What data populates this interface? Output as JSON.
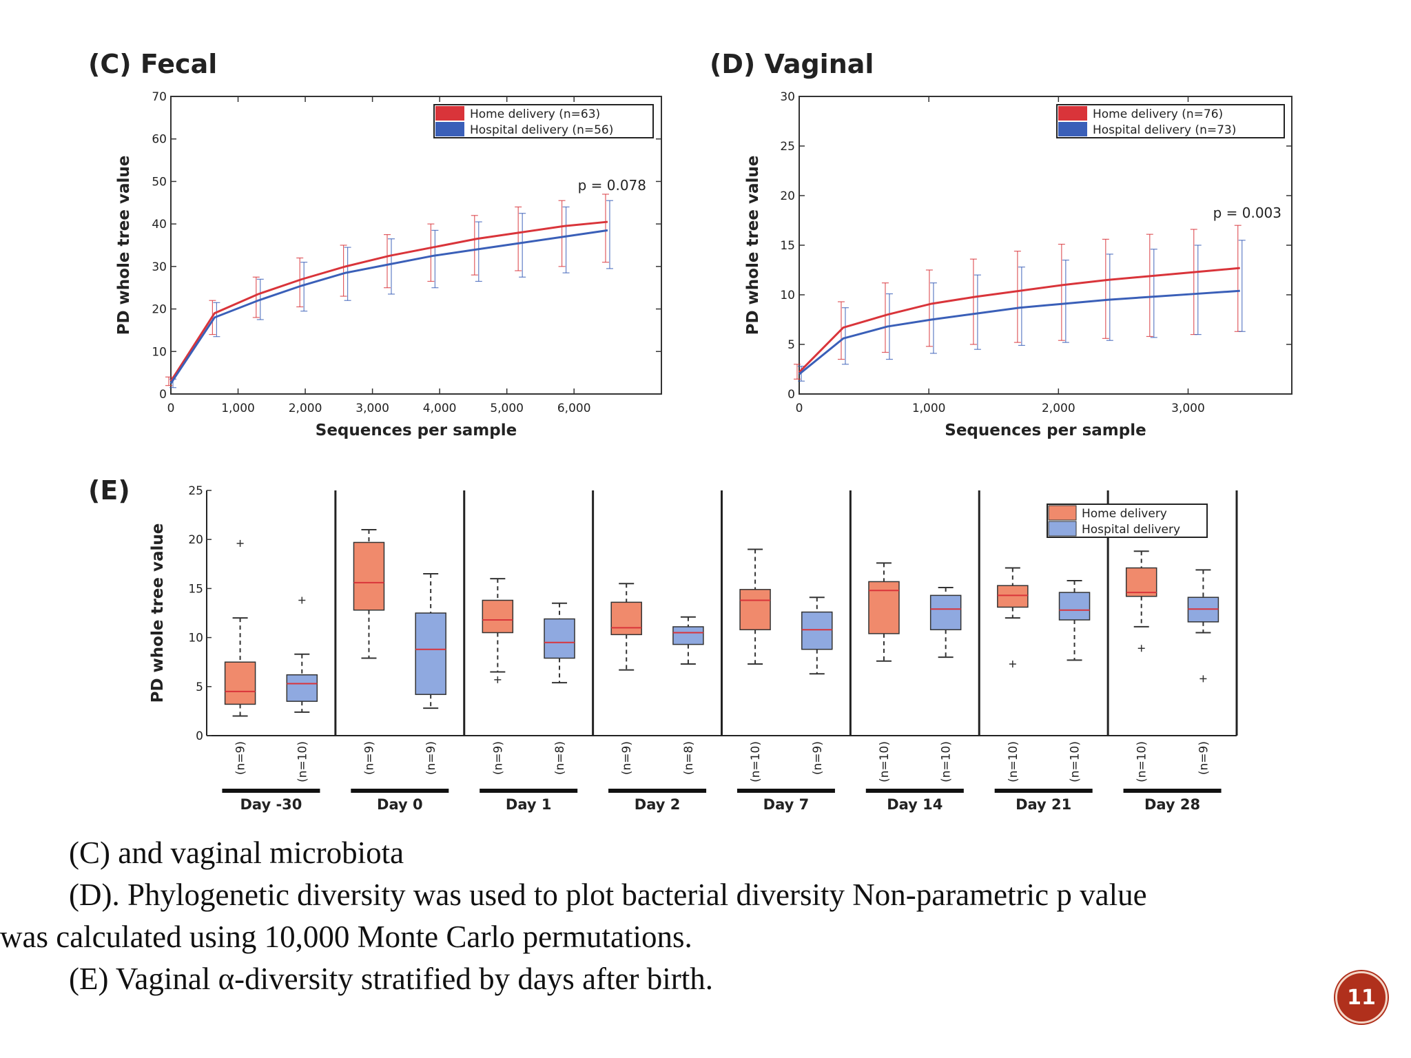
{
  "colors": {
    "home_line": "#d9343a",
    "hospital_line": "#3a5fb8",
    "home_box": "#f08a6c",
    "hospital_box": "#8fa9e0",
    "median": "#d9343a",
    "slide_badge": "#b0301c"
  },
  "chart_data": [
    {
      "type": "line",
      "panel_label": "(C) Fecal",
      "xlabel": "Sequences per sample",
      "ylabel": "PD whole tree value",
      "xlim": [
        0,
        7300
      ],
      "ylim": [
        0,
        70
      ],
      "xticks": [
        0,
        1000,
        2000,
        3000,
        4000,
        5000,
        6000
      ],
      "xtick_labels": [
        "0",
        "1,000",
        "2,000",
        "3,000",
        "4,000",
        "5,000",
        "6,000"
      ],
      "yticks": [
        0,
        10,
        20,
        30,
        40,
        50,
        60,
        70
      ],
      "ytick_labels": [
        "0",
        "10",
        "20",
        "30",
        "40",
        "50",
        "60",
        "70"
      ],
      "annotation": "p = 0.078",
      "x": [
        0,
        650,
        1300,
        1950,
        2600,
        3250,
        3900,
        4550,
        5200,
        5850,
        6500
      ],
      "series": [
        {
          "name": "Home delivery (n=63)",
          "values": [
            3,
            19,
            23.5,
            27,
            30,
            32.5,
            34.5,
            36.5,
            38,
            39.5,
            40.5
          ],
          "err_low": [
            2,
            14,
            18,
            20.5,
            23,
            25,
            26.5,
            28,
            29,
            30,
            31
          ],
          "err_high": [
            4,
            22,
            27.5,
            32,
            35,
            37.5,
            40,
            42,
            44,
            45.5,
            47
          ]
        },
        {
          "name": "Hospital delivery (n=56)",
          "values": [
            2.5,
            18,
            22,
            25.5,
            28.5,
            30.5,
            32.5,
            34,
            35.5,
            37,
            38.5
          ],
          "err_low": [
            1.5,
            13.5,
            17.5,
            19.5,
            22,
            23.5,
            25,
            26.5,
            27.5,
            28.5,
            29.5
          ],
          "err_high": [
            3.5,
            21.5,
            27,
            31,
            34.5,
            36.5,
            38.5,
            40.5,
            42.5,
            44,
            45.5
          ]
        }
      ]
    },
    {
      "type": "line",
      "panel_label": "(D) Vaginal",
      "xlabel": "Sequences per sample",
      "ylabel": "PD whole tree value",
      "xlim": [
        0,
        3800
      ],
      "ylim": [
        0,
        30
      ],
      "xticks": [
        0,
        1000,
        2000,
        3000
      ],
      "xtick_labels": [
        "0",
        "1,000",
        "2,000",
        "3,000"
      ],
      "yticks": [
        0,
        5,
        10,
        15,
        20,
        25,
        30
      ],
      "ytick_labels": [
        "0",
        "5",
        "10",
        "15",
        "20",
        "25",
        "30"
      ],
      "annotation": "p = 0.003",
      "x": [
        0,
        340,
        680,
        1020,
        1360,
        1700,
        2040,
        2380,
        2720,
        3060,
        3400
      ],
      "series": [
        {
          "name": "Home delivery (n=76)",
          "values": [
            2.2,
            6.7,
            8,
            9.1,
            9.8,
            10.4,
            11,
            11.5,
            11.9,
            12.3,
            12.7
          ],
          "err_low": [
            1.5,
            3.5,
            4.2,
            4.8,
            5,
            5.2,
            5.4,
            5.6,
            5.8,
            6,
            6.3
          ],
          "err_high": [
            3,
            9.3,
            11.2,
            12.5,
            13.6,
            14.4,
            15.1,
            15.6,
            16.1,
            16.6,
            17
          ]
        },
        {
          "name": "Hospital delivery (n=73)",
          "values": [
            2,
            5.6,
            6.8,
            7.5,
            8.1,
            8.7,
            9.1,
            9.5,
            9.8,
            10.1,
            10.4
          ],
          "err_low": [
            1.3,
            3,
            3.5,
            4.1,
            4.5,
            4.9,
            5.2,
            5.4,
            5.7,
            6,
            6.3
          ],
          "err_high": [
            2.8,
            8.7,
            10.1,
            11.2,
            12,
            12.8,
            13.5,
            14.1,
            14.6,
            15,
            15.5
          ]
        }
      ]
    },
    {
      "type": "box",
      "panel_label": "(E)",
      "ylabel": "PD whole tree value",
      "ylim": [
        0,
        25
      ],
      "yticks": [
        0,
        5,
        10,
        15,
        20,
        25
      ],
      "ytick_labels": [
        "0",
        "5",
        "10",
        "15",
        "20",
        "25"
      ],
      "legend": [
        "Home delivery",
        "Hospital delivery"
      ],
      "groups": [
        {
          "day": "Day -30",
          "home": {
            "n": "(n=9)",
            "min": 2,
            "q1": 3.2,
            "median": 4.5,
            "q3": 7.5,
            "max": 12,
            "outliers": [
              19.6
            ]
          },
          "hospital": {
            "n": "(n=10)",
            "min": 2.4,
            "q1": 3.5,
            "median": 5.3,
            "q3": 6.2,
            "max": 8.3,
            "outliers": [
              13.8
            ]
          }
        },
        {
          "day": "Day 0",
          "home": {
            "n": "(n=9)",
            "min": 7.9,
            "q1": 12.8,
            "median": 15.6,
            "q3": 19.7,
            "max": 21,
            "outliers": []
          },
          "hospital": {
            "n": "(n=9)",
            "min": 2.8,
            "q1": 4.2,
            "median": 8.8,
            "q3": 12.5,
            "max": 16.5,
            "outliers": []
          }
        },
        {
          "day": "Day 1",
          "home": {
            "n": "(n=9)",
            "min": 6.5,
            "q1": 10.5,
            "median": 11.8,
            "q3": 13.8,
            "max": 16,
            "outliers": [
              5.7
            ]
          },
          "hospital": {
            "n": "(n=8)",
            "min": 5.4,
            "q1": 7.9,
            "median": 9.5,
            "q3": 11.9,
            "max": 13.5,
            "outliers": []
          }
        },
        {
          "day": "Day 2",
          "home": {
            "n": "(n=9)",
            "min": 6.7,
            "q1": 10.3,
            "median": 11,
            "q3": 13.6,
            "max": 15.5,
            "outliers": []
          },
          "hospital": {
            "n": "(n=8)",
            "min": 7.3,
            "q1": 9.3,
            "median": 10.5,
            "q3": 11.1,
            "max": 12.1,
            "outliers": []
          }
        },
        {
          "day": "Day 7",
          "home": {
            "n": "(n=10)",
            "min": 7.3,
            "q1": 10.8,
            "median": 13.8,
            "q3": 14.9,
            "max": 19,
            "outliers": []
          },
          "hospital": {
            "n": "(n=9)",
            "min": 6.3,
            "q1": 8.8,
            "median": 10.8,
            "q3": 12.6,
            "max": 14.1,
            "outliers": []
          }
        },
        {
          "day": "Day 14",
          "home": {
            "n": "(n=10)",
            "min": 7.6,
            "q1": 10.4,
            "median": 14.8,
            "q3": 15.7,
            "max": 17.6,
            "outliers": []
          },
          "hospital": {
            "n": "(n=10)",
            "min": 8,
            "q1": 10.8,
            "median": 12.9,
            "q3": 14.3,
            "max": 15.1,
            "outliers": []
          }
        },
        {
          "day": "Day 21",
          "home": {
            "n": "(n=10)",
            "min": 12,
            "q1": 13.1,
            "median": 14.3,
            "q3": 15.3,
            "max": 17.1,
            "outliers": [
              7.3
            ]
          },
          "hospital": {
            "n": "(n=10)",
            "min": 7.7,
            "q1": 11.8,
            "median": 12.8,
            "q3": 14.6,
            "max": 15.8,
            "outliers": []
          }
        },
        {
          "day": "Day 28",
          "home": {
            "n": "(n=10)",
            "min": 11.1,
            "q1": 14.2,
            "median": 14.6,
            "q3": 17.1,
            "max": 18.8,
            "outliers": [
              8.9
            ]
          },
          "hospital": {
            "n": "(n=9)",
            "min": 10.5,
            "q1": 11.6,
            "median": 12.9,
            "q3": 14.1,
            "max": 16.9,
            "outliers": [
              5.8
            ]
          }
        }
      ]
    }
  ],
  "caption": {
    "line1": "(C) and vaginal microbiota",
    "line2": "(D). Phylogenetic diversity was used to plot bacterial diversity Non-parametric p value",
    "line3": "was calculated using 10,000 Monte Carlo permutations.",
    "line4": "(E) Vaginal α-diversity stratified by days after birth."
  },
  "slide_number": "11"
}
